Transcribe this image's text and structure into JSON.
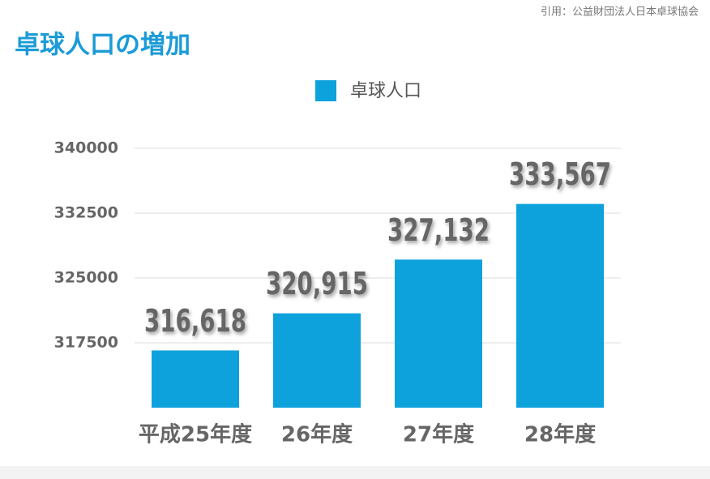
{
  "source": "引用：公益財団法人日本卓球協会",
  "chart_data": {
    "type": "bar",
    "title": "卓球人口の増加",
    "categories": [
      "平成25年度",
      "26年度",
      "27年度",
      "28年度"
    ],
    "series": [
      {
        "name": "卓球人口",
        "color": "#0ea2dc",
        "values": [
          316618,
          320915,
          327132,
          333567
        ],
        "value_labels": [
          "316,618",
          "320,915",
          "327,132",
          "333,567"
        ]
      }
    ],
    "ylim": [
      310000,
      340000
    ],
    "yticks": [
      317500,
      325000,
      332500,
      340000
    ],
    "grid": true
  }
}
